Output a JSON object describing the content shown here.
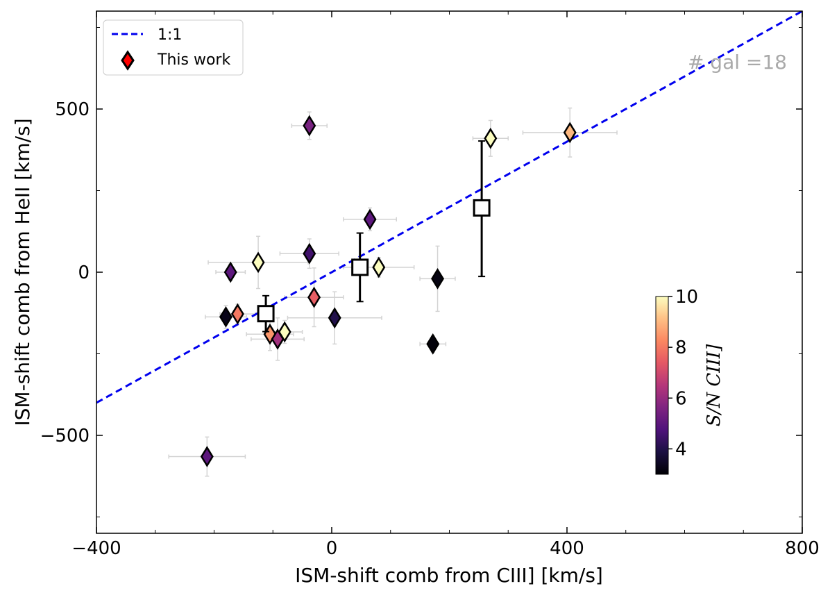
{
  "chart_data": {
    "type": "scatter",
    "xlabel": "ISM-shift comb from CIII] [km/s]",
    "ylabel": "ISM-shift comb from HeII [km/s]",
    "xlim": [
      -400,
      800
    ],
    "ylim": [
      -800,
      800
    ],
    "x_ticks": [
      -400,
      0,
      400,
      800
    ],
    "y_ticks": [
      -500,
      0,
      500
    ],
    "x_tick_labels": [
      "−400",
      "0",
      "400",
      "800"
    ],
    "y_tick_labels": [
      "−500",
      "0",
      "500"
    ],
    "grid": false,
    "legend": {
      "placement": "top-left",
      "entries": [
        {
          "label": "1:1",
          "marker": "dashed-line",
          "color": "#0000ee"
        },
        {
          "label": "This work",
          "marker": "diamond",
          "color": "#ff0000"
        }
      ]
    },
    "annotation": "# gal =18",
    "one_to_one_line": {
      "x": [
        -400,
        800
      ],
      "y": [
        -400,
        800
      ],
      "color": "#0000ee",
      "style": "dashed"
    },
    "colorbar": {
      "label": "S/N CIII]",
      "range": [
        3,
        10
      ],
      "ticks": [
        4,
        6,
        8,
        10
      ],
      "tick_labels": [
        "4",
        "6",
        "8",
        "10"
      ],
      "colormap": "magma"
    },
    "series": [
      {
        "name": "This work",
        "marker": "diamond",
        "points": [
          {
            "x": -38,
            "y": 449,
            "xerr": 30,
            "yerr": 42,
            "sn": 5.5
          },
          {
            "x": 270,
            "y": 410,
            "xerr": 30,
            "yerr": 55,
            "sn": 10
          },
          {
            "x": 405,
            "y": 428,
            "xerr": 80,
            "yerr": 75,
            "sn": 9.0
          },
          {
            "x": 65,
            "y": 162,
            "xerr": 45,
            "yerr": 35,
            "sn": 5.0
          },
          {
            "x": -38,
            "y": 57,
            "xerr": 50,
            "yerr": 45,
            "sn": 4.5
          },
          {
            "x": -125,
            "y": 30,
            "xerr": 85,
            "yerr": 80,
            "sn": 10
          },
          {
            "x": -172,
            "y": 0,
            "xerr": 25,
            "yerr": 25,
            "sn": 5.0
          },
          {
            "x": 80,
            "y": 15,
            "xerr": 60,
            "yerr": 30,
            "sn": 10
          },
          {
            "x": 180,
            "y": -20,
            "xerr": 30,
            "yerr": 100,
            "sn": 3.2
          },
          {
            "x": -30,
            "y": -77,
            "xerr": 50,
            "yerr": 90,
            "sn": 7.5
          },
          {
            "x": -180,
            "y": -137,
            "xerr": 35,
            "yerr": 35,
            "sn": 3.3
          },
          {
            "x": -160,
            "y": -128,
            "xerr": 30,
            "yerr": 30,
            "sn": 8.0
          },
          {
            "x": 5,
            "y": -140,
            "xerr": 80,
            "yerr": 80,
            "sn": 4.0
          },
          {
            "x": -105,
            "y": -190,
            "xerr": 40,
            "yerr": 50,
            "sn": 8.5
          },
          {
            "x": -92,
            "y": -205,
            "xerr": 45,
            "yerr": 65,
            "sn": 6.2
          },
          {
            "x": -80,
            "y": -183,
            "xerr": 30,
            "yerr": 35,
            "sn": 10
          },
          {
            "x": 172,
            "y": -220,
            "xerr": 22,
            "yerr": 25,
            "sn": 3.1
          },
          {
            "x": -212,
            "y": -565,
            "xerr": 65,
            "yerr": 60,
            "sn": 5.0
          }
        ]
      },
      {
        "name": "",
        "marker": "open-square",
        "points": [
          {
            "x": -112,
            "y": -127,
            "yerr_low": 55,
            "yerr_high": 55
          },
          {
            "x": 48,
            "y": 15,
            "yerr_low": 105,
            "yerr_high": 105
          },
          {
            "x": 255,
            "y": 197,
            "yerr_low": 210,
            "yerr_high": 205
          }
        ]
      }
    ]
  }
}
